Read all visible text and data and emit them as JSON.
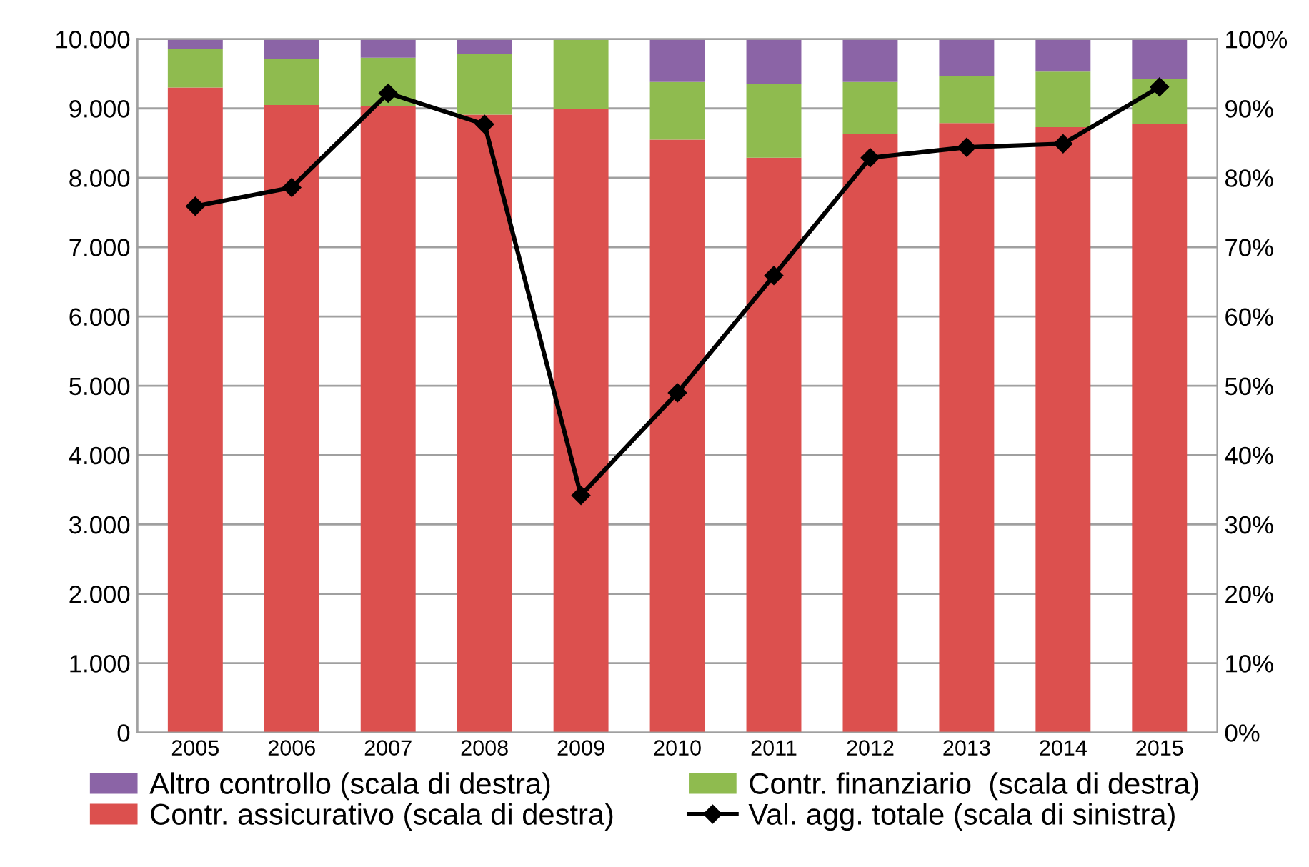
{
  "chart_data": {
    "type": "bar",
    "stacked": true,
    "categories": [
      "2005",
      "2006",
      "2007",
      "2008",
      "2009",
      "2010",
      "2011",
      "2012",
      "2013",
      "2014",
      "2015"
    ],
    "series": [
      {
        "name": "Contr. assicurativo (scala di destra)",
        "color": "#dc504e",
        "axis": "y2",
        "values": [
          93.0,
          90.5,
          90.3,
          89.1,
          89.9,
          85.5,
          82.9,
          86.3,
          87.9,
          87.3,
          87.7
        ]
      },
      {
        "name": "Contr. finanziario  (scala di destra)",
        "color": "#8fbb4f",
        "axis": "y2",
        "values": [
          5.6,
          6.6,
          7.0,
          8.8,
          10.1,
          8.3,
          10.6,
          7.5,
          6.8,
          8.0,
          6.6
        ]
      },
      {
        "name": "Altro controllo (scala di destra)",
        "color": "#8b64a6",
        "axis": "y2",
        "values": [
          1.4,
          2.9,
          2.7,
          2.1,
          0,
          6.2,
          6.5,
          6.2,
          5.3,
          4.7,
          5.7
        ]
      },
      {
        "name": "Val. agg. totale (scala di sinistra)",
        "type": "line",
        "color": "#000000",
        "axis": "y",
        "marker": "diamond",
        "values": [
          7590,
          7860,
          9220,
          8770,
          3420,
          4900,
          6590,
          8290,
          8440,
          8490,
          9310
        ]
      }
    ],
    "ylim": [
      0,
      10000
    ],
    "yticks": [
      0,
      {
        "value": 1000,
        "label": "1.000"
      },
      {
        "value": 2000,
        "label": "2.000"
      },
      {
        "value": 3000,
        "label": "3.000"
      },
      {
        "value": 4000,
        "label": "4.000"
      },
      {
        "value": 5000,
        "label": "5.000"
      },
      {
        "value": 6000,
        "label": "6.000"
      },
      {
        "value": 7000,
        "label": "7.000"
      },
      {
        "value": 8000,
        "label": "8.000"
      },
      {
        "value": 9000,
        "label": "9.000"
      },
      {
        "value": 10000,
        "label": "10.000"
      }
    ],
    "y2lim": [
      0,
      100
    ],
    "y2ticks": [
      {
        "value": 0,
        "label": "0%"
      },
      {
        "value": 10,
        "label": "10%"
      },
      {
        "value": 20,
        "label": "20%"
      },
      {
        "value": 30,
        "label": "30%"
      },
      {
        "value": 40,
        "label": "40%"
      },
      {
        "value": 50,
        "label": "50%"
      },
      {
        "value": 60,
        "label": "60%"
      },
      {
        "value": 70,
        "label": "70%"
      },
      {
        "value": 80,
        "label": "80%"
      },
      {
        "value": 90,
        "label": "90%"
      },
      {
        "value": 100,
        "label": "100%"
      }
    ],
    "grid": "y",
    "legend": "bottom"
  }
}
